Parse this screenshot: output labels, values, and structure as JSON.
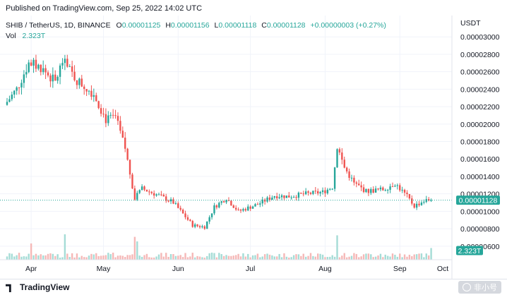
{
  "header": {
    "published": "Published on TradingView.com, Sep 25, 2022 14:02 UTC"
  },
  "legend": {
    "symbol": "SHIB / TetherUS, 1D, BINANCE",
    "o_label": "O",
    "o": "0.00001125",
    "h_label": "H",
    "h": "0.00001156",
    "l_label": "L",
    "l": "0.00001118",
    "c_label": "C",
    "c": "0.00001128",
    "change": "+0.00000003 (+0.27%)",
    "vol_label": "Vol",
    "vol": "2.323T"
  },
  "footer": {
    "logo_text": "TradingView",
    "watermark_text": "非小号"
  },
  "colors": {
    "up": "#26a69a",
    "down": "#ef5350",
    "up_volume": "#a5dcd6",
    "down_volume": "#f5b8b7",
    "grid": "#f0f3fa",
    "axis_text": "#131722"
  },
  "chart_data": {
    "type": "candlestick",
    "symbol": "SHIB / TetherUS",
    "interval": "1D",
    "exchange": "BINANCE",
    "currency": "USDT",
    "y_ticks": [
      "0.00003000",
      "0.00002800",
      "0.00002600",
      "0.00002400",
      "0.00002200",
      "0.00002000",
      "0.00001800",
      "0.00001600",
      "0.00001400",
      "0.00001200",
      "0.00001000",
      "0.00000800",
      "0.00000600"
    ],
    "ylim": [
      5.5e-06,
      3.18e-05
    ],
    "x_ticks": [
      "Apr",
      "May",
      "Jun",
      "Jul",
      "Aug",
      "Sep",
      "Oct"
    ],
    "last_price": "0.00001128",
    "last_volume": "2.323T",
    "grid": true,
    "series": [
      {
        "name": "price",
        "anchors": [
          {
            "day": 0,
            "value": 2.22e-05
          },
          {
            "day": 5,
            "value": 2.4e-05
          },
          {
            "day": 10,
            "value": 2.7e-05
          },
          {
            "day": 15,
            "value": 2.65e-05
          },
          {
            "day": 21,
            "value": 2.48e-05
          },
          {
            "day": 24,
            "value": 2.72e-05
          },
          {
            "day": 30,
            "value": 2.5e-05
          },
          {
            "day": 37,
            "value": 2.35e-05
          },
          {
            "day": 42,
            "value": 2.05e-05
          },
          {
            "day": 46,
            "value": 2.08e-05
          },
          {
            "day": 50,
            "value": 1.72e-05
          },
          {
            "day": 54,
            "value": 1.15e-05
          },
          {
            "day": 57,
            "value": 1.26e-05
          },
          {
            "day": 64,
            "value": 1.18e-05
          },
          {
            "day": 70,
            "value": 1.1e-05
          },
          {
            "day": 78,
            "value": 8.4e-06
          },
          {
            "day": 83,
            "value": 8.2e-06
          },
          {
            "day": 87,
            "value": 1.05e-05
          },
          {
            "day": 92,
            "value": 1.15e-05
          },
          {
            "day": 97,
            "value": 1e-05
          },
          {
            "day": 105,
            "value": 1.08e-05
          },
          {
            "day": 112,
            "value": 1.18e-05
          },
          {
            "day": 118,
            "value": 1.17e-05
          },
          {
            "day": 125,
            "value": 1.2e-05
          },
          {
            "day": 132,
            "value": 1.22e-05
          },
          {
            "day": 136,
            "value": 1.28e-05
          },
          {
            "day": 138,
            "value": 1.75e-05
          },
          {
            "day": 141,
            "value": 1.5e-05
          },
          {
            "day": 145,
            "value": 1.32e-05
          },
          {
            "day": 150,
            "value": 1.23e-05
          },
          {
            "day": 157,
            "value": 1.25e-05
          },
          {
            "day": 162,
            "value": 1.32e-05
          },
          {
            "day": 167,
            "value": 1.17e-05
          },
          {
            "day": 170,
            "value": 1.06e-05
          },
          {
            "day": 174,
            "value": 1.12e-05
          },
          {
            "day": 176,
            "value": 1.128e-05
          }
        ]
      },
      {
        "name": "volume",
        "spikes": [
          {
            "day": 10,
            "value": 3.2
          },
          {
            "day": 24,
            "value": 5.0
          },
          {
            "day": 53,
            "value": 4.5
          },
          {
            "day": 54,
            "value": 3.6
          },
          {
            "day": 137,
            "value": 4.8
          },
          {
            "day": 176,
            "value": 2.3
          }
        ]
      }
    ]
  }
}
